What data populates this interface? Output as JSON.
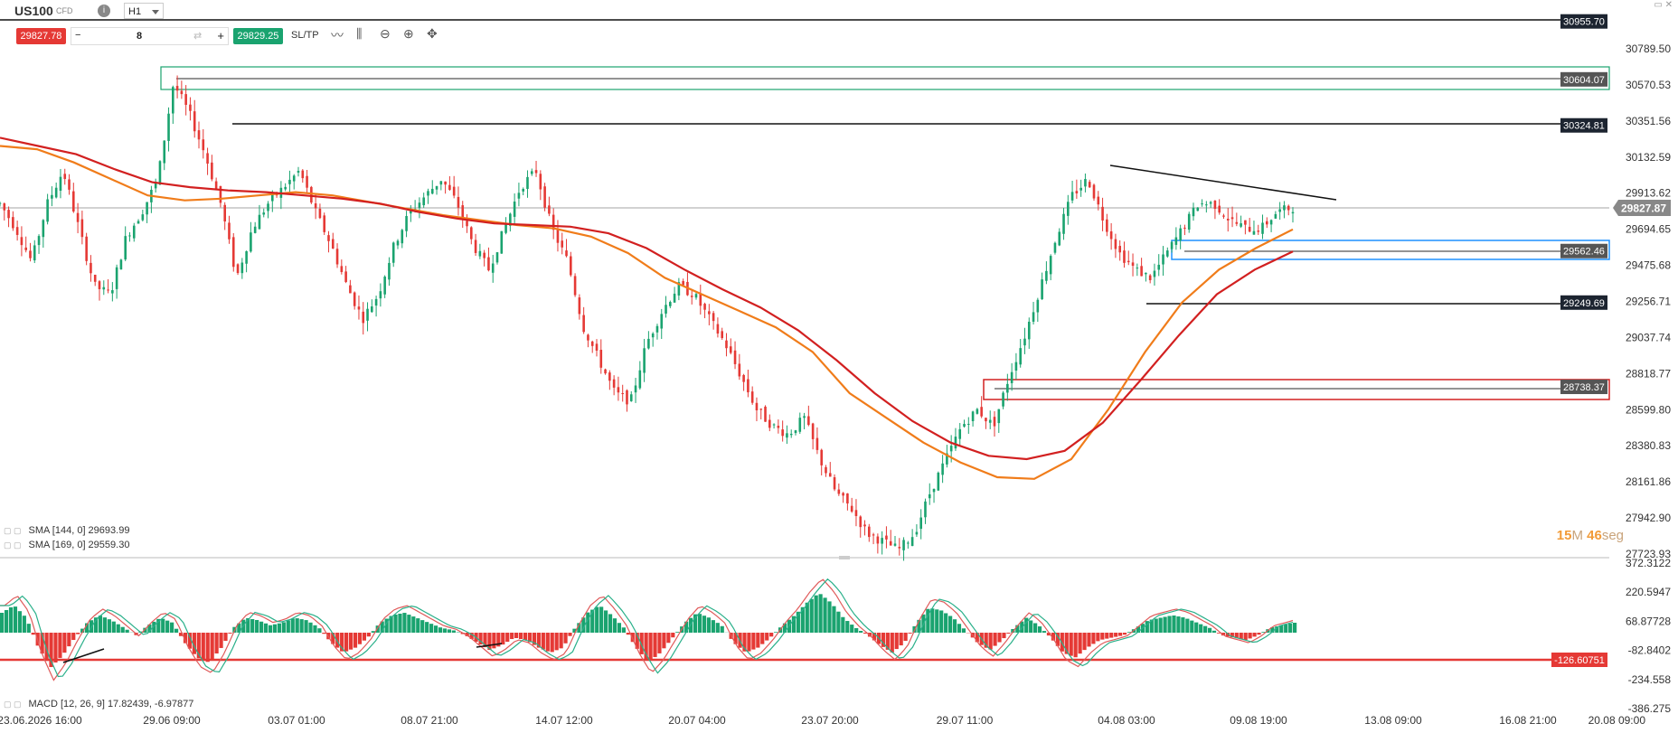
{
  "header": {
    "symbol": "US100",
    "instrument_type": "CFD",
    "info_icon": "info-icon",
    "timeframe": "H1",
    "sell_price": "29827.78",
    "buy_price": "29829.25",
    "quantity": "8",
    "sltp_label": "SL/TP",
    "tools": [
      "line-chart-icon",
      "candles-icon",
      "zoom-out-icon",
      "zoom-in-icon",
      "crosshair-icon"
    ]
  },
  "colors": {
    "bull": "#1aa36f",
    "bear": "#e53935",
    "sma144": "#f07c1a",
    "sma169": "#d22020",
    "macd": "#e05a5a",
    "signal": "#2ab08a"
  },
  "legend": {
    "sma144": "SMA [144, 0] 29693.99",
    "sma169": "SMA [169, 0] 29559.30",
    "macd": "MACD [12, 26, 9] 17.82439, -6.97877"
  },
  "timer": {
    "minutes": "15",
    "m_unit": "M",
    "seconds": "46",
    "s_unit": "seg"
  },
  "chart_data": [
    {
      "type": "candlestick",
      "panel": "price",
      "ylim": [
        27723.93,
        31000
      ],
      "y_ticks": [
        "30789.50",
        "30570.53",
        "30351.56",
        "30132.59",
        "29913.62",
        "29694.65",
        "29475.68",
        "29256.71",
        "29037.74",
        "28818.77",
        "28599.80",
        "28380.83",
        "28161.86",
        "27942.90",
        "27723.93"
      ],
      "x_ticks": [
        "23.06.2026 16:00",
        "29.06 09:00",
        "03.07 01:00",
        "08.07 21:00",
        "14.07 12:00",
        "20.07 04:00",
        "23.07 20:00",
        "29.07 11:00",
        "04.08 03:00",
        "09.08 19:00",
        "13.08 09:00",
        "16.08 21:00",
        "20.08 09:00"
      ],
      "price_path": [
        29850,
        29700,
        29500,
        29850,
        30050,
        29700,
        29350,
        29300,
        29650,
        29800,
        30000,
        30580,
        30400,
        30150,
        29850,
        29400,
        29700,
        29850,
        29950,
        30050,
        29800,
        29600,
        29350,
        29150,
        29300,
        29600,
        29800,
        29900,
        30000,
        29850,
        29600,
        29450,
        29700,
        29950,
        30050,
        29700,
        29500,
        29100,
        28900,
        28700,
        28650,
        29000,
        29200,
        29350,
        29300,
        29150,
        29000,
        28800,
        28600,
        28500,
        28450,
        28550,
        28300,
        28100,
        28000,
        27850,
        27800,
        27750,
        27850,
        28100,
        28300,
        28500,
        28600,
        28500,
        28800,
        29050,
        29350,
        29650,
        29900,
        30000,
        29750,
        29550,
        29450,
        29400,
        29550,
        29700,
        29850,
        29850,
        29750,
        29700,
        29700,
        29800,
        29827
      ],
      "sma144_path": [
        30200,
        30180,
        30100,
        30000,
        29900,
        29870,
        29880,
        29900,
        29920,
        29900,
        29860,
        29820,
        29780,
        29750,
        29720,
        29700,
        29650,
        29550,
        29400,
        29300,
        29200,
        29100,
        28950,
        28700,
        28550,
        28400,
        28280,
        28190,
        28180,
        28300,
        28600,
        28950,
        29250,
        29450,
        29580,
        29693.99
      ],
      "sma169_path": [
        30250,
        30200,
        30150,
        30060,
        29980,
        29950,
        29930,
        29920,
        29900,
        29880,
        29850,
        29800,
        29760,
        29730,
        29720,
        29710,
        29670,
        29580,
        29450,
        29330,
        29220,
        29080,
        28900,
        28700,
        28530,
        28400,
        28320,
        28300,
        28350,
        28520,
        28780,
        29050,
        29300,
        29450,
        29559.3
      ],
      "price_labels": [
        "30955.70",
        "30604.07",
        "30324.81",
        "29827.87",
        "29562.46",
        "29249.69",
        "28738.37"
      ],
      "current_price": "29827.87",
      "last_tick_label": "27723.93"
    },
    {
      "type": "histogram+line",
      "panel": "MACD",
      "y_ticks": [
        "372.3122",
        "220.5947",
        "68.87728",
        "-82.8402",
        "-234.558",
        "-386.275"
      ],
      "level_label": "-126.60751",
      "histogram": [
        40,
        55,
        30,
        -30,
        -70,
        -45,
        -10,
        20,
        35,
        25,
        10,
        -5,
        15,
        30,
        20,
        -20,
        -50,
        -60,
        -30,
        10,
        30,
        25,
        15,
        20,
        30,
        25,
        10,
        -20,
        -40,
        -30,
        -10,
        20,
        35,
        40,
        30,
        20,
        10,
        5,
        -5,
        -20,
        -35,
        -25,
        -10,
        -15,
        -30,
        -40,
        -30,
        10,
        40,
        55,
        35,
        10,
        -30,
        -60,
        -40,
        -10,
        20,
        40,
        30,
        15,
        -20,
        -40,
        -30,
        -10,
        15,
        35,
        60,
        80,
        60,
        30,
        10,
        -5,
        -25,
        -40,
        -20,
        20,
        50,
        45,
        30,
        5,
        -20,
        -35,
        -15,
        10,
        30,
        15,
        -10,
        -40,
        -50,
        -30,
        -15,
        -10,
        -5,
        10,
        25,
        30,
        35,
        30,
        20,
        10,
        -5,
        -10,
        -15,
        -5,
        10,
        15,
        20
      ]
    }
  ]
}
